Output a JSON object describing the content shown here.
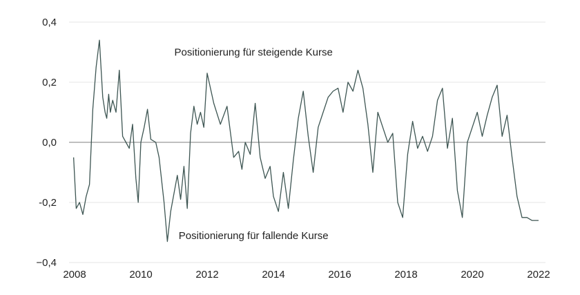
{
  "chart_data": {
    "type": "line",
    "title": "",
    "xlabel": "",
    "ylabel": "",
    "xlim": [
      2008,
      2022
    ],
    "ylim": [
      -0.4,
      0.4
    ],
    "grid": true,
    "legend": "none",
    "x_ticks": [
      {
        "value": 2008,
        "label": "2008"
      },
      {
        "value": 2010,
        "label": "2010"
      },
      {
        "value": 2012,
        "label": "2012"
      },
      {
        "value": 2014,
        "label": "2014"
      },
      {
        "value": 2016,
        "label": "2016"
      },
      {
        "value": 2018,
        "label": "2018"
      },
      {
        "value": 2020,
        "label": "2020"
      },
      {
        "value": 2022,
        "label": "2022"
      }
    ],
    "y_ticks": [
      {
        "value": 0.4,
        "label": "0,4"
      },
      {
        "value": 0.2,
        "label": "0,2"
      },
      {
        "value": 0.0,
        "label": "0,0"
      },
      {
        "value": -0.2,
        "label": "-0,2"
      },
      {
        "value": -0.4,
        "label": "−0,4"
      }
    ],
    "annotations": [
      {
        "text": "Positionierung für steigende Kurse",
        "x": 2013.4,
        "y": 0.3
      },
      {
        "text": "Positionierung für fallende Kurse",
        "x": 2013.4,
        "y": -0.31
      }
    ],
    "colors": {
      "line": "#3d5552",
      "zero_line": "#999999",
      "grid": "#e6e6e6"
    },
    "series": [
      {
        "x": [
          2007.97,
          2008.05,
          2008.15,
          2008.25,
          2008.35,
          2008.45,
          2008.55,
          2008.65,
          2008.75,
          2008.85,
          2008.92,
          2008.97,
          2009.03,
          2009.08,
          2009.15,
          2009.25,
          2009.35,
          2009.45,
          2009.55,
          2009.65,
          2009.75,
          2009.85,
          2009.92,
          2010.0,
          2010.1,
          2010.2,
          2010.3,
          2010.45,
          2010.55,
          2010.7,
          2010.8,
          2010.9,
          2011.0,
          2011.1,
          2011.2,
          2011.3,
          2011.4,
          2011.5,
          2011.6,
          2011.7,
          2011.8,
          2011.9,
          2012.0,
          2012.2,
          2012.4,
          2012.6,
          2012.8,
          2012.95,
          2013.05,
          2013.15,
          2013.3,
          2013.45,
          2013.6,
          2013.75,
          2013.9,
          2014.0,
          2014.15,
          2014.3,
          2014.45,
          2014.6,
          2014.75,
          2014.9,
          2015.05,
          2015.2,
          2015.35,
          2015.5,
          2015.65,
          2015.8,
          2015.95,
          2016.1,
          2016.25,
          2016.4,
          2016.55,
          2016.7,
          2016.85,
          2017.0,
          2017.15,
          2017.3,
          2017.45,
          2017.6,
          2017.75,
          2017.9,
          2018.05,
          2018.2,
          2018.35,
          2018.5,
          2018.65,
          2018.8,
          2018.95,
          2019.1,
          2019.25,
          2019.4,
          2019.55,
          2019.7,
          2019.85,
          2020.0,
          2020.15,
          2020.3,
          2020.45,
          2020.6,
          2020.75,
          2020.9,
          2021.05,
          2021.2,
          2021.35,
          2021.5,
          2021.65,
          2021.8,
          2021.9,
          2022.0
        ],
        "y": [
          -0.05,
          -0.22,
          -0.2,
          -0.24,
          -0.18,
          -0.14,
          0.11,
          0.25,
          0.34,
          0.15,
          0.1,
          0.08,
          0.16,
          0.1,
          0.14,
          0.1,
          0.24,
          0.02,
          0.0,
          -0.02,
          0.06,
          -0.12,
          -0.2,
          0.0,
          0.05,
          0.11,
          0.01,
          0.0,
          -0.05,
          -0.2,
          -0.33,
          -0.23,
          -0.17,
          -0.11,
          -0.19,
          -0.08,
          -0.22,
          0.03,
          0.12,
          0.06,
          0.1,
          0.05,
          0.23,
          0.13,
          0.06,
          0.12,
          -0.05,
          -0.03,
          -0.09,
          0.0,
          -0.04,
          0.13,
          -0.05,
          -0.12,
          -0.08,
          -0.18,
          -0.23,
          -0.1,
          -0.22,
          -0.06,
          0.08,
          0.17,
          0.02,
          -0.1,
          0.05,
          0.1,
          0.15,
          0.17,
          0.18,
          0.1,
          0.2,
          0.17,
          0.24,
          0.18,
          0.06,
          -0.1,
          0.1,
          0.05,
          0.0,
          0.03,
          -0.2,
          -0.25,
          -0.04,
          0.07,
          -0.02,
          0.02,
          -0.03,
          0.02,
          0.14,
          0.18,
          -0.02,
          0.08,
          -0.16,
          -0.25,
          0.0,
          0.05,
          0.1,
          0.02,
          0.09,
          0.15,
          0.19,
          0.02,
          0.09,
          -0.05,
          -0.18,
          -0.25,
          -0.25,
          -0.26,
          -0.26,
          -0.26
        ]
      }
    ]
  }
}
